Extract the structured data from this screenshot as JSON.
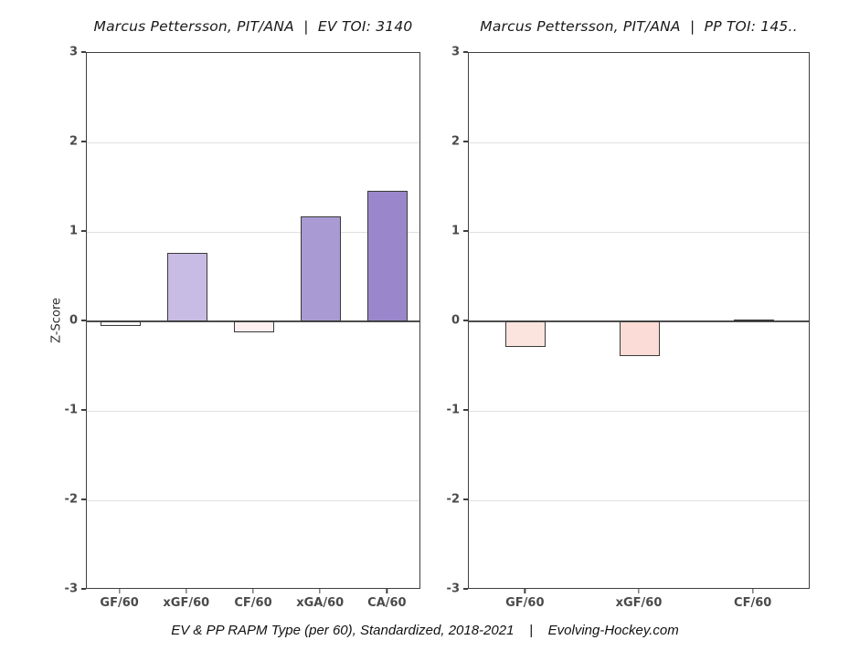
{
  "page": {
    "caption": "EV & PP RAPM Type (per 60), Standardized, 2018-2021    |    Evolving-Hockey.com"
  },
  "chart_data": [
    {
      "type": "bar",
      "title": "Marcus Pettersson, PIT/ANA  |  EV TOI: 3140",
      "ylabel": "Z-Score",
      "ylim": [
        -3,
        3
      ],
      "yticks": [
        3,
        2,
        1,
        0,
        -1,
        -2,
        -3
      ],
      "grid": true,
      "categories": [
        "GF/60",
        "xGF/60",
        "CF/60",
        "xGA/60",
        "CA/60"
      ],
      "values": [
        -0.05,
        0.77,
        -0.12,
        1.17,
        1.46
      ],
      "bar_colors": [
        "#fdfafa",
        "#c9bce4",
        "#fdf0ef",
        "#a99ad3",
        "#9a87cb"
      ],
      "bar_border_color": "#3a3a3a",
      "zero_line_color": "#4d4d4d"
    },
    {
      "type": "bar",
      "title": "Marcus Pettersson, PIT/ANA  |  PP TOI: 145..",
      "ylabel": "",
      "ylim": [
        -3,
        3
      ],
      "yticks": [
        3,
        2,
        1,
        0,
        -1,
        -2,
        -3
      ],
      "grid": true,
      "categories": [
        "GF/60",
        "xGF/60",
        "CF/60"
      ],
      "values": [
        -0.29,
        -0.39,
        0.02
      ],
      "bar_colors": [
        "#fbe3de",
        "#fcdcd7",
        "#e8e6ee"
      ],
      "bar_border_color": "#3a3a3a",
      "zero_line_color": "#4d4d4d"
    }
  ]
}
